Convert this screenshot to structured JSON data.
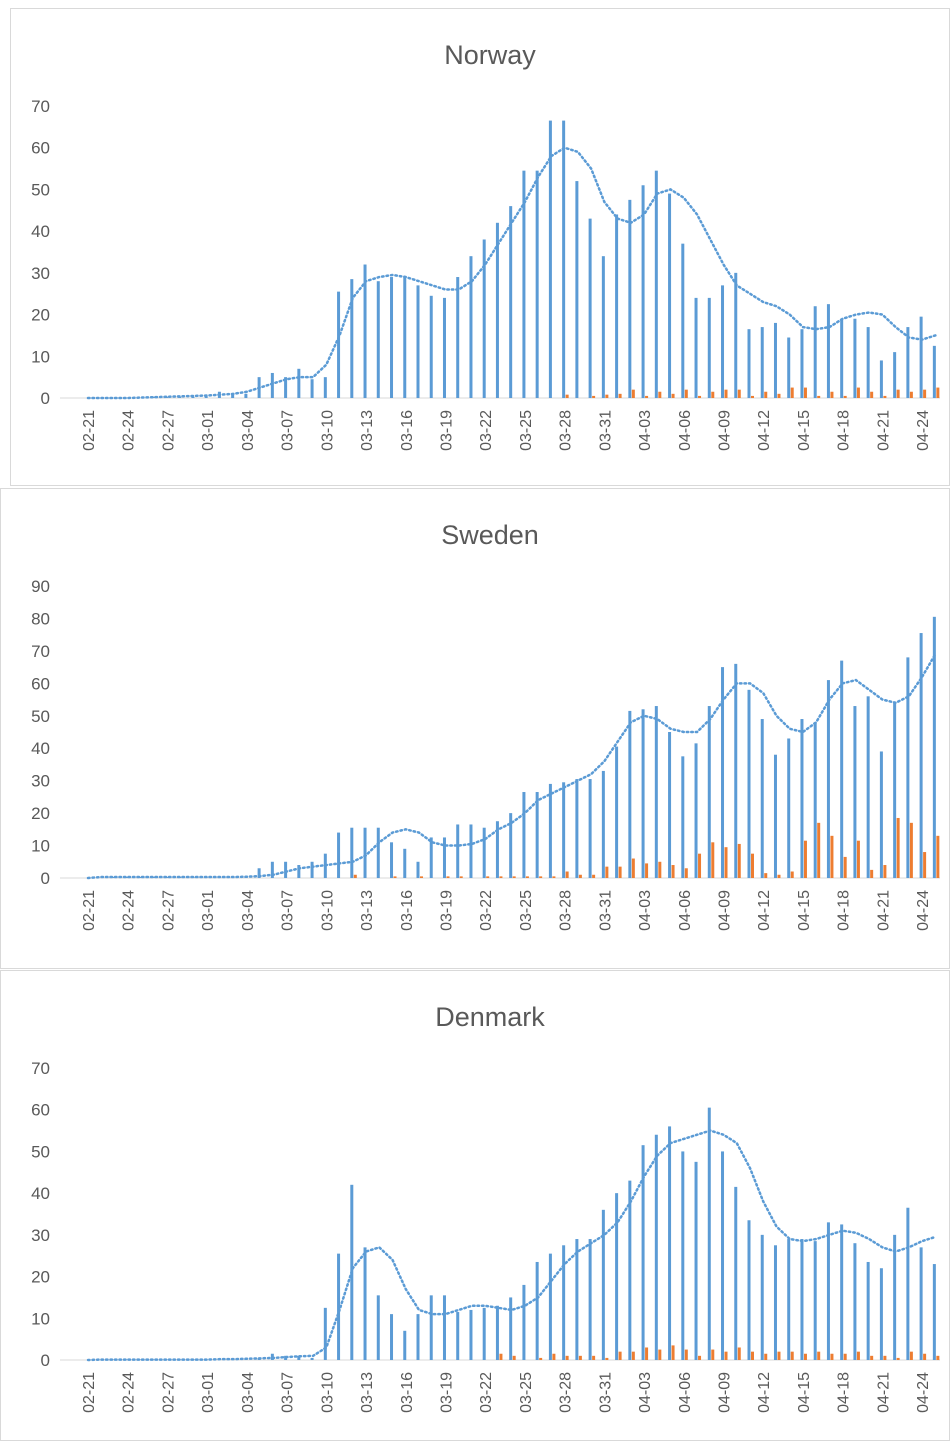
{
  "chart_data": [
    {
      "type": "bar",
      "title": "Norway",
      "categories": [
        "02-21",
        null,
        null,
        "02-24",
        null,
        null,
        "02-27",
        null,
        null,
        "03-01",
        null,
        null,
        "03-04",
        null,
        null,
        "03-07",
        null,
        null,
        "03-10",
        null,
        null,
        "03-13",
        null,
        null,
        "03-16",
        null,
        null,
        "03-19",
        null,
        null,
        "03-22",
        null,
        null,
        "03-25",
        null,
        null,
        "03-28",
        null,
        null,
        "03-31",
        null,
        null,
        "04-03",
        null,
        null,
        "04-06",
        null,
        null,
        "04-09",
        null,
        null,
        "04-12",
        null,
        null,
        "04-15",
        null,
        null,
        "04-18",
        null,
        null,
        "04-21",
        null,
        null,
        "04-24",
        null
      ],
      "series": [
        {
          "color": "#5b9bd5",
          "values": [
            0,
            0,
            0,
            0,
            0,
            0.3,
            0.3,
            0.3,
            0.3,
            0.5,
            1.5,
            1,
            1,
            5,
            6,
            5,
            7,
            4.5,
            5,
            25.5,
            28.5,
            32,
            28,
            29,
            29,
            27,
            24.5,
            24,
            29,
            34,
            38,
            42,
            46,
            54.5,
            54.5,
            66.5,
            66.5,
            52,
            43,
            34,
            44,
            47.5,
            51,
            54.5,
            49,
            37,
            24,
            24,
            27,
            30,
            16.5,
            17,
            18,
            14.5,
            16.5,
            22,
            22.5,
            19,
            19,
            17,
            9,
            11,
            17,
            19.5,
            12.5
          ]
        },
        {
          "color": "#ed7d31",
          "values": [
            0,
            0,
            0,
            0,
            0,
            0,
            0,
            0,
            0,
            0,
            0,
            0,
            0,
            0,
            0,
            0,
            0,
            0,
            0,
            0,
            0,
            0,
            0,
            0,
            0,
            0,
            0,
            0,
            0,
            0,
            0,
            0,
            0,
            0,
            0,
            0,
            0.8,
            0,
            0.5,
            0.8,
            1,
            2,
            0.5,
            1.5,
            1,
            2,
            0.5,
            1.5,
            2,
            2,
            0.5,
            1.5,
            1,
            2.5,
            2.5,
            0.5,
            1.5,
            0.5,
            2.5,
            1.5,
            0.5,
            2,
            1.5,
            2,
            2.5
          ]
        },
        {
          "type": "line",
          "style": "dotted",
          "color": "#5b9bd5",
          "values": [
            0,
            0,
            0,
            0,
            0.1,
            0.2,
            0.3,
            0.4,
            0.5,
            0.6,
            0.8,
            1,
            1.5,
            2.5,
            3.5,
            4.5,
            5,
            5,
            8,
            15,
            24,
            28,
            29,
            29.5,
            29,
            28,
            27,
            26,
            26,
            28,
            32,
            37,
            42,
            47,
            53,
            58,
            60,
            59,
            55,
            47,
            43,
            42,
            44,
            49,
            50,
            48,
            44,
            38,
            32,
            27,
            25,
            23,
            22,
            20,
            17,
            16.5,
            17,
            19,
            20,
            20.5,
            20,
            17,
            14.5,
            14,
            15
          ]
        }
      ],
      "ylim": [
        0,
        70
      ],
      "yticks": [
        0,
        10,
        20,
        30,
        40,
        50,
        60,
        70
      ],
      "grid": false
    },
    {
      "type": "bar",
      "title": "Sweden",
      "categories": [
        "02-21",
        null,
        null,
        "02-24",
        null,
        null,
        "02-27",
        null,
        null,
        "03-01",
        null,
        null,
        "03-04",
        null,
        null,
        "03-07",
        null,
        null,
        "03-10",
        null,
        null,
        "03-13",
        null,
        null,
        "03-16",
        null,
        null,
        "03-19",
        null,
        null,
        "03-22",
        null,
        null,
        "03-25",
        null,
        null,
        "03-28",
        null,
        null,
        "03-31",
        null,
        null,
        "04-03",
        null,
        null,
        "04-06",
        null,
        null,
        "04-09",
        null,
        null,
        "04-12",
        null,
        null,
        "04-15",
        null,
        null,
        "04-18",
        null,
        null,
        "04-21",
        null,
        null,
        "04-24",
        null
      ],
      "series": [
        {
          "color": "#5b9bd5",
          "values": [
            0,
            0,
            0.3,
            0.3,
            0.3,
            0.3,
            0.3,
            0.3,
            0.3,
            0.3,
            0.3,
            0.3,
            0.5,
            3,
            5,
            5,
            4,
            5,
            7.5,
            14,
            15.5,
            15.5,
            15.5,
            11,
            9,
            5,
            12.5,
            12.5,
            16.5,
            16.5,
            15.5,
            17.5,
            20,
            26.5,
            26.5,
            29,
            29.5,
            30.5,
            30.5,
            33,
            40.5,
            51.5,
            52,
            53,
            45,
            37.5,
            41.5,
            53,
            65,
            66,
            58,
            49,
            38,
            43,
            49,
            48,
            61,
            67,
            53,
            56,
            39,
            54,
            68,
            75.5,
            80.5
          ]
        },
        {
          "color": "#ed7d31",
          "values": [
            0,
            0,
            0,
            0,
            0,
            0,
            0,
            0,
            0,
            0,
            0,
            0,
            0,
            0,
            0,
            0,
            0,
            0,
            0,
            0,
            1,
            0,
            0,
            0.5,
            0,
            0.5,
            0,
            0.5,
            0.5,
            0,
            0.5,
            0.5,
            0.5,
            0.5,
            0.5,
            0.5,
            2,
            1,
            1,
            3.5,
            3.5,
            6,
            4.5,
            5,
            4,
            3,
            7.5,
            11,
            9.5,
            10.5,
            7.5,
            1.5,
            1,
            2,
            11.5,
            17,
            13,
            6.5,
            11.5,
            2.5,
            4,
            18.5,
            17,
            8,
            13
          ]
        },
        {
          "type": "line",
          "style": "dotted",
          "color": "#5b9bd5",
          "values": [
            0,
            0.3,
            0.3,
            0.3,
            0.3,
            0.3,
            0.3,
            0.3,
            0.3,
            0.3,
            0.3,
            0.3,
            0.4,
            0.6,
            1,
            2,
            3,
            3.5,
            4,
            4.5,
            5,
            7,
            11,
            14,
            15,
            14,
            11,
            10,
            10,
            10.5,
            12,
            15,
            17,
            20,
            24,
            26,
            28,
            30,
            32,
            36,
            42,
            48,
            50,
            49,
            46,
            45,
            45,
            49,
            55,
            60,
            60,
            57,
            50,
            46,
            45,
            48,
            55,
            60,
            61,
            58,
            55,
            54,
            56,
            62,
            69
          ]
        }
      ],
      "ylim": [
        0,
        90
      ],
      "yticks": [
        0,
        10,
        20,
        30,
        40,
        50,
        60,
        70,
        80,
        90
      ],
      "grid": false
    },
    {
      "type": "bar",
      "title": "Denmark",
      "categories": [
        "02-21",
        null,
        null,
        "02-24",
        null,
        null,
        "02-27",
        null,
        null,
        "03-01",
        null,
        null,
        "03-04",
        null,
        null,
        "03-07",
        null,
        null,
        "03-10",
        null,
        null,
        "03-13",
        null,
        null,
        "03-16",
        null,
        null,
        "03-19",
        null,
        null,
        "03-22",
        null,
        null,
        "03-25",
        null,
        null,
        "03-28",
        null,
        null,
        "03-31",
        null,
        null,
        "04-03",
        null,
        null,
        "04-06",
        null,
        null,
        "04-09",
        null,
        null,
        "04-12",
        null,
        null,
        "04-15",
        null,
        null,
        "04-18",
        null,
        null,
        "04-21",
        null,
        null,
        "04-24",
        null
      ],
      "series": [
        {
          "color": "#5b9bd5",
          "values": [
            0,
            0,
            0.1,
            0.1,
            0.1,
            0.1,
            0.1,
            0.1,
            0.2,
            0.2,
            0.2,
            0.3,
            0.3,
            0.5,
            1.5,
            1,
            1,
            0.5,
            12.5,
            25.5,
            42,
            27,
            15.5,
            11,
            7,
            11,
            15.5,
            15.5,
            11.5,
            12,
            12.5,
            13,
            15,
            18,
            23.5,
            25.5,
            27.5,
            29,
            29,
            36,
            40,
            43,
            51.5,
            54,
            56,
            50,
            47.5,
            60.5,
            50,
            41.5,
            33.5,
            30,
            27.5,
            29,
            29,
            28.5,
            33,
            32.5,
            28,
            23.5,
            22,
            30,
            36.5,
            27,
            23
          ]
        },
        {
          "color": "#ed7d31",
          "values": [
            0,
            0,
            0,
            0,
            0,
            0,
            0,
            0,
            0,
            0,
            0,
            0,
            0,
            0,
            0,
            0,
            0,
            0,
            0,
            0,
            0,
            0,
            0,
            0,
            0,
            0,
            0,
            0,
            0,
            0,
            0,
            1.5,
            1,
            0,
            0.5,
            1.5,
            1,
            1,
            1,
            0.5,
            2,
            2,
            3,
            2.5,
            3.5,
            2.5,
            1,
            2.5,
            2,
            3,
            2,
            1.5,
            2,
            2,
            1.5,
            2,
            1.5,
            1.5,
            2,
            1,
            1,
            0.5,
            2,
            1.5,
            1
          ]
        },
        {
          "type": "line",
          "style": "dotted",
          "color": "#5b9bd5",
          "values": [
            0,
            0.1,
            0.1,
            0.1,
            0.1,
            0.1,
            0.1,
            0.1,
            0.1,
            0.1,
            0.2,
            0.2,
            0.3,
            0.4,
            0.5,
            0.7,
            0.9,
            1,
            3,
            12,
            22,
            26,
            27,
            24,
            17,
            12,
            11,
            11,
            12,
            13,
            13,
            12.5,
            12,
            13,
            15,
            19,
            23,
            26,
            28,
            30,
            33,
            38,
            44,
            49,
            52,
            53,
            54,
            55,
            54,
            52,
            46,
            38,
            32,
            29,
            28.5,
            29,
            30,
            31,
            30.5,
            29,
            27,
            26,
            27,
            28.5,
            29.5
          ]
        }
      ],
      "ylim": [
        0,
        70
      ],
      "yticks": [
        0,
        10,
        20,
        30,
        40,
        50,
        60,
        70
      ],
      "grid": false
    }
  ]
}
